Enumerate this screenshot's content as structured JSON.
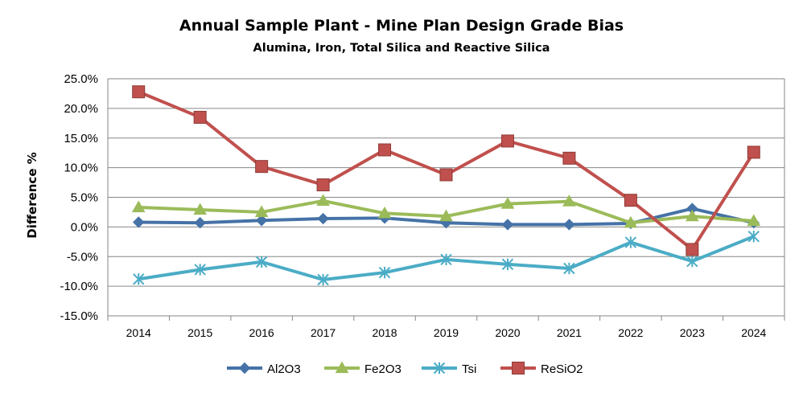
{
  "chart_data": {
    "type": "line",
    "title": "Annual Sample Plant - Mine Plan Design Grade Bias",
    "subtitle": "Alumina, Iron, Total Silica and Reactive Silica",
    "xlabel": "",
    "ylabel": "Difference %",
    "categories": [
      "2014",
      "2015",
      "2016",
      "2017",
      "2018",
      "2019",
      "2020",
      "2021",
      "2022",
      "2023",
      "2024"
    ],
    "ylim": [
      -15,
      25
    ],
    "ytick_step": 5,
    "ytick_labels": [
      "-15.0%",
      "-10.0%",
      "-5.0%",
      "0.0%",
      "5.0%",
      "10.0%",
      "15.0%",
      "20.0%",
      "25.0%"
    ],
    "grid": true,
    "legend_position": "bottom",
    "series": [
      {
        "name": "Al2O3",
        "color": "#4572A7",
        "marker": "diamond",
        "values": [
          0.8,
          0.7,
          1.1,
          1.4,
          1.5,
          0.7,
          0.4,
          0.4,
          0.6,
          3.1,
          0.7
        ]
      },
      {
        "name": "Fe2O3",
        "color": "#9BBB59",
        "marker": "triangle",
        "values": [
          3.3,
          2.9,
          2.5,
          4.4,
          2.3,
          1.8,
          3.9,
          4.3,
          0.7,
          1.8,
          1.0
        ]
      },
      {
        "name": "Tsi",
        "color": "#4BACC6",
        "marker": "star",
        "values": [
          -8.8,
          -7.2,
          -5.9,
          -8.9,
          -7.7,
          -5.5,
          -6.3,
          -7.0,
          -2.6,
          -5.8,
          -1.6
        ]
      },
      {
        "name": "ReSiO2",
        "color": "#C0504D",
        "marker": "square",
        "values": [
          22.8,
          18.5,
          10.2,
          7.1,
          13.0,
          8.8,
          14.5,
          11.6,
          4.5,
          -3.8,
          12.6
        ]
      }
    ]
  }
}
